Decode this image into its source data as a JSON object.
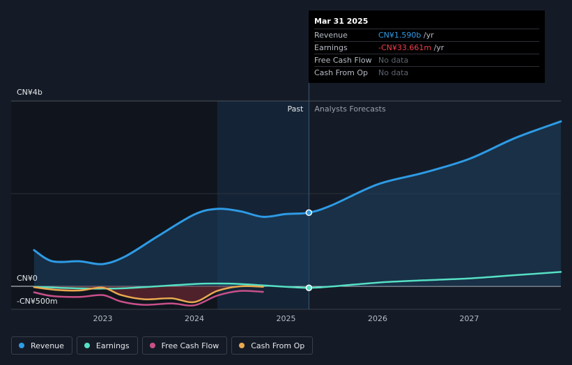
{
  "tooltip": {
    "date": "Mar 31 2025",
    "rows": [
      {
        "label": "Revenue",
        "value": "CN¥1.590b",
        "unit": " /yr",
        "color": "#2e9be5"
      },
      {
        "label": "Earnings",
        "value": "-CN¥33.661m",
        "unit": " /yr",
        "color": "#f23d4c"
      },
      {
        "label": "Free Cash Flow",
        "value": "No data",
        "unit": "",
        "color": "#5f6570"
      },
      {
        "label": "Cash From Op",
        "value": "No data",
        "unit": "",
        "color": "#5f6570"
      }
    ]
  },
  "legend": [
    {
      "label": "Revenue",
      "color": "#2e9be5"
    },
    {
      "label": "Earnings",
      "color": "#56e0c4"
    },
    {
      "label": "Free Cash Flow",
      "color": "#c8508a"
    },
    {
      "label": "Cash From Op",
      "color": "#e9a94f"
    }
  ],
  "chart_data": {
    "type": "line",
    "y_labels": [
      "CN¥4b",
      "CN¥0",
      "-CN¥500m"
    ],
    "x_ticks": [
      "2023",
      "2024",
      "2025",
      "2026",
      "2027"
    ],
    "past_label": "Past",
    "forecast_label": "Analysts Forecasts",
    "ylim": [
      -500,
      4000
    ],
    "marker_x": 2025.25,
    "series": [
      {
        "name": "Revenue",
        "color": "#2e9be5",
        "points": [
          [
            2022.25,
            780
          ],
          [
            2022.45,
            540
          ],
          [
            2022.75,
            540
          ],
          [
            2023.0,
            480
          ],
          [
            2023.25,
            650
          ],
          [
            2023.6,
            1080
          ],
          [
            2024.0,
            1550
          ],
          [
            2024.25,
            1670
          ],
          [
            2024.5,
            1620
          ],
          [
            2024.75,
            1500
          ],
          [
            2025.0,
            1560
          ],
          [
            2025.25,
            1590
          ],
          [
            2025.5,
            1750
          ],
          [
            2026.0,
            2200
          ],
          [
            2026.5,
            2450
          ],
          [
            2027.0,
            2750
          ],
          [
            2027.5,
            3200
          ],
          [
            2028.0,
            3560
          ]
        ]
      },
      {
        "name": "Earnings",
        "color": "#56e0c4",
        "points": [
          [
            2022.25,
            -10
          ],
          [
            2022.5,
            -30
          ],
          [
            2022.75,
            -45
          ],
          [
            2023.0,
            -50
          ],
          [
            2023.25,
            -40
          ],
          [
            2023.6,
            0
          ],
          [
            2024.0,
            50
          ],
          [
            2024.25,
            60
          ],
          [
            2024.5,
            50
          ],
          [
            2024.75,
            20
          ],
          [
            2025.0,
            -10
          ],
          [
            2025.25,
            -34
          ],
          [
            2025.5,
            -5
          ],
          [
            2026.0,
            80
          ],
          [
            2026.5,
            130
          ],
          [
            2027.0,
            170
          ],
          [
            2027.5,
            240
          ],
          [
            2028.0,
            310
          ]
        ]
      },
      {
        "name": "Free Cash Flow",
        "color": "#c8508a",
        "points": [
          [
            2022.25,
            -130
          ],
          [
            2022.45,
            -210
          ],
          [
            2022.75,
            -230
          ],
          [
            2023.0,
            -190
          ],
          [
            2023.2,
            -330
          ],
          [
            2023.45,
            -400
          ],
          [
            2023.75,
            -370
          ],
          [
            2024.0,
            -410
          ],
          [
            2024.25,
            -200
          ],
          [
            2024.5,
            -100
          ],
          [
            2024.75,
            -120
          ]
        ]
      },
      {
        "name": "Cash From Op",
        "color": "#e9a94f",
        "points": [
          [
            2022.25,
            -20
          ],
          [
            2022.5,
            -80
          ],
          [
            2022.75,
            -90
          ],
          [
            2023.0,
            -30
          ],
          [
            2023.2,
            -190
          ],
          [
            2023.45,
            -280
          ],
          [
            2023.75,
            -260
          ],
          [
            2024.0,
            -340
          ],
          [
            2024.25,
            -100
          ],
          [
            2024.5,
            0
          ],
          [
            2024.75,
            -10
          ]
        ]
      }
    ]
  }
}
